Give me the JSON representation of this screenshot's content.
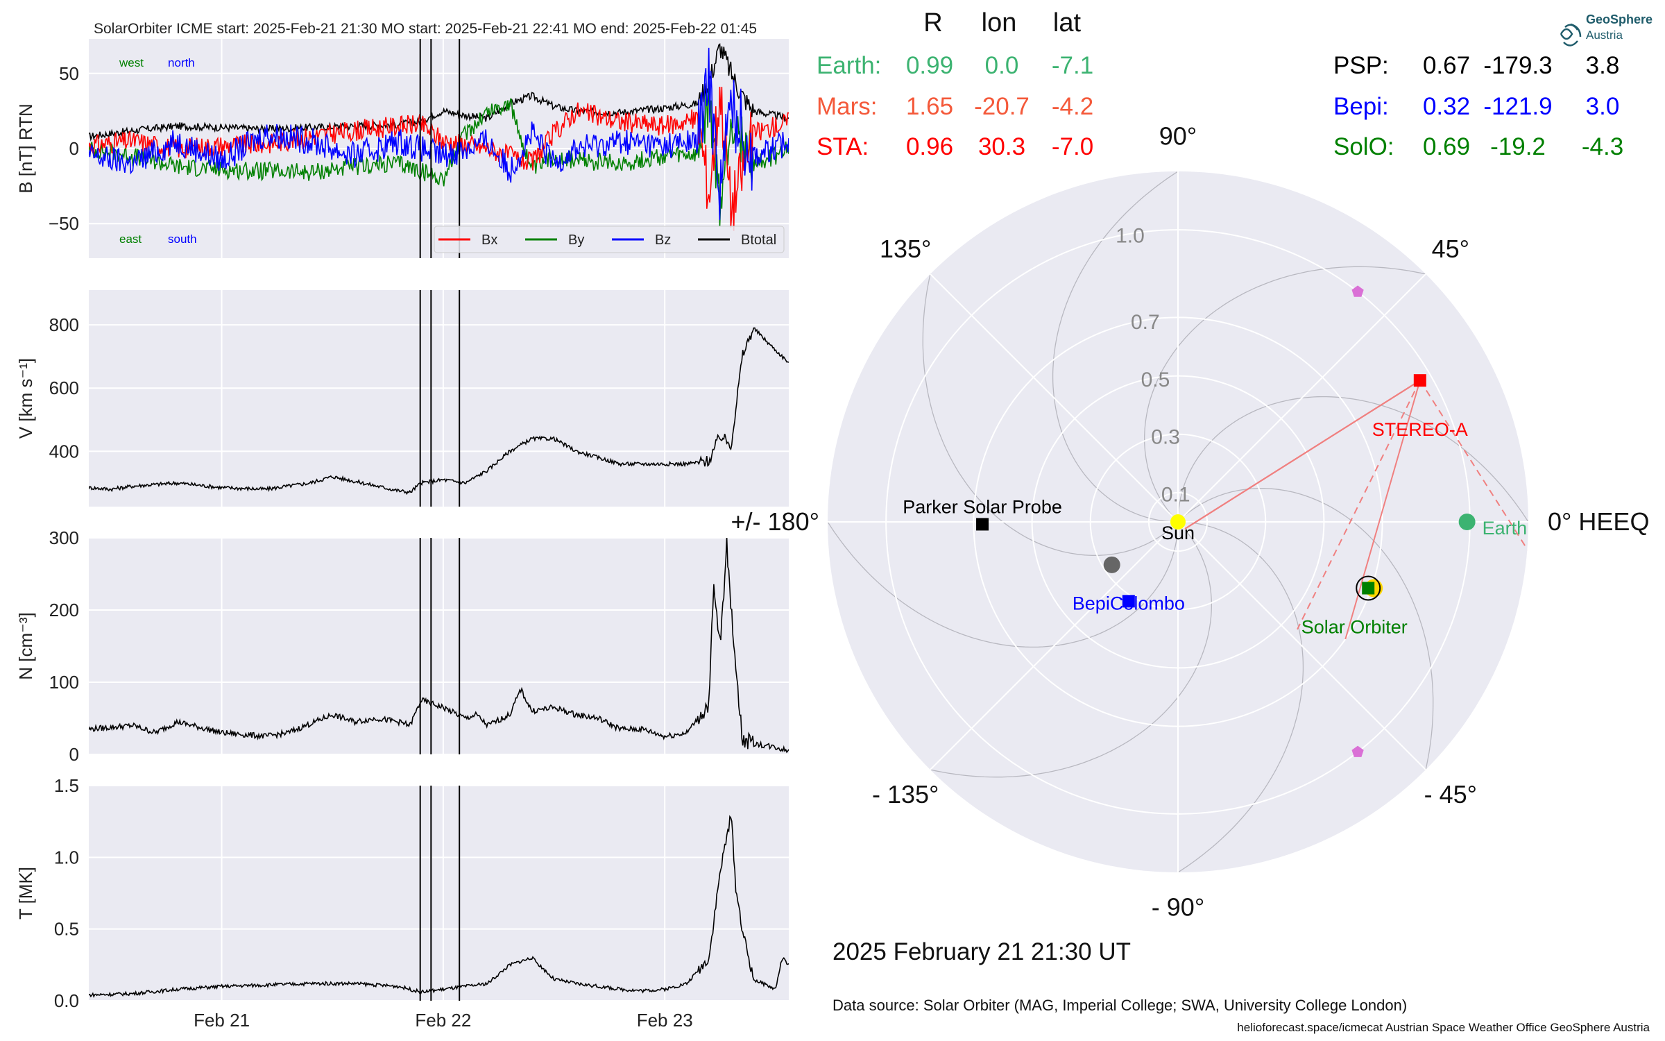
{
  "header": {
    "text": "SolarOrbiter    ICME start: 2025-Feb-21 21:30   MO start: 2025-Feb-21 22:41   MO end: 2025-Feb-22 01:45"
  },
  "chart_data": [
    {
      "type": "line",
      "panel": "B",
      "ylabel": "B [nT] RTN",
      "ylim": [
        -73,
        73
      ],
      "yticks": [
        {
          "v": 50,
          "t": "50"
        },
        {
          "v": 0,
          "t": "0"
        },
        {
          "v": -50,
          "t": "−50"
        }
      ],
      "xlim": [
        20.4,
        23.56
      ],
      "legend": [
        {
          "name": "Bx",
          "color": "#ff0000"
        },
        {
          "name": "By",
          "color": "#008000"
        },
        {
          "name": "Bz",
          "color": "#0000ff"
        },
        {
          "name": "Btotal",
          "color": "#000000"
        }
      ],
      "legend_placement": "lower right",
      "annotations": [
        {
          "text": "west",
          "color": "#008000"
        },
        {
          "text": "north",
          "color": "#0000ff"
        },
        {
          "text": "east",
          "color": "#008000"
        },
        {
          "text": "south",
          "color": "#0000ff"
        }
      ],
      "series": [
        {
          "name": "Btotal",
          "color": "#000000",
          "x": [
            20.4,
            20.6,
            20.8,
            21.0,
            21.2,
            21.4,
            21.6,
            21.8,
            21.9,
            21.95,
            22.0,
            22.1,
            22.2,
            22.3,
            22.4,
            22.5,
            22.6,
            22.8,
            23.0,
            23.15,
            23.2,
            23.25,
            23.3,
            23.35,
            23.4,
            23.5,
            23.56
          ],
          "y": [
            8,
            12,
            15,
            14,
            13,
            14,
            15,
            16,
            18,
            22,
            25,
            22,
            20,
            30,
            35,
            28,
            25,
            24,
            27,
            30,
            45,
            68,
            50,
            35,
            25,
            22,
            20
          ]
        },
        {
          "name": "Bx",
          "color": "#ff0000",
          "x": [
            20.4,
            20.6,
            20.8,
            21.0,
            21.2,
            21.4,
            21.6,
            21.8,
            21.9,
            22.0,
            22.1,
            22.2,
            22.3,
            22.4,
            22.5,
            22.6,
            22.8,
            23.0,
            23.15,
            23.2,
            23.25,
            23.3,
            23.4,
            23.5,
            23.56
          ],
          "y": [
            2,
            5,
            0,
            2,
            3,
            8,
            12,
            15,
            16,
            5,
            3,
            0,
            -5,
            -10,
            10,
            25,
            18,
            15,
            20,
            -30,
            40,
            -40,
            10,
            15,
            18
          ]
        },
        {
          "name": "By",
          "color": "#008000",
          "x": [
            20.4,
            20.6,
            20.8,
            21.0,
            21.2,
            21.4,
            21.6,
            21.8,
            21.9,
            22.0,
            22.1,
            22.2,
            22.3,
            22.4,
            22.5,
            22.6,
            22.8,
            23.0,
            23.15,
            23.2,
            23.25,
            23.3,
            23.4,
            23.5,
            23.56
          ],
          "y": [
            0,
            -5,
            -12,
            -14,
            -15,
            -16,
            -12,
            -10,
            -15,
            -20,
            10,
            25,
            30,
            -15,
            -5,
            -8,
            -10,
            -5,
            -5,
            30,
            -40,
            20,
            -10,
            -5,
            0
          ]
        },
        {
          "name": "Bz",
          "color": "#0000ff",
          "x": [
            20.4,
            20.6,
            20.8,
            21.0,
            21.2,
            21.4,
            21.6,
            21.8,
            21.9,
            22.0,
            22.1,
            22.2,
            22.3,
            22.4,
            22.5,
            22.6,
            22.8,
            23.0,
            23.15,
            23.2,
            23.25,
            23.3,
            23.4,
            23.5,
            23.56
          ],
          "y": [
            -5,
            -10,
            5,
            -8,
            10,
            5,
            -5,
            5,
            0,
            -5,
            0,
            5,
            -15,
            10,
            -10,
            0,
            5,
            2,
            5,
            45,
            -25,
            30,
            -5,
            0,
            5
          ]
        }
      ]
    },
    {
      "type": "line",
      "panel": "V",
      "ylabel": "V [km s⁻¹]",
      "ylim": [
        225,
        910
      ],
      "yticks": [
        {
          "v": 800,
          "t": "800"
        },
        {
          "v": 600,
          "t": "600"
        },
        {
          "v": 400,
          "t": "400"
        }
      ],
      "xlim": [
        20.4,
        23.56
      ],
      "series": [
        {
          "name": "V",
          "color": "#000000",
          "x": [
            20.4,
            20.5,
            20.6,
            20.8,
            21.0,
            21.2,
            21.4,
            21.5,
            21.6,
            21.7,
            21.8,
            21.85,
            21.9,
            22.0,
            22.1,
            22.2,
            22.3,
            22.35,
            22.4,
            22.5,
            22.6,
            22.7,
            22.8,
            22.9,
            23.0,
            23.1,
            23.2,
            23.25,
            23.3,
            23.35,
            23.4,
            23.5,
            23.56
          ],
          "y": [
            285,
            280,
            290,
            300,
            285,
            280,
            300,
            320,
            305,
            290,
            275,
            270,
            300,
            310,
            300,
            340,
            400,
            420,
            440,
            440,
            400,
            380,
            360,
            360,
            360,
            360,
            370,
            450,
            420,
            700,
            790,
            720,
            680
          ]
        }
      ]
    },
    {
      "type": "line",
      "panel": "N",
      "ylabel": "N [cm⁻³]",
      "ylim": [
        0,
        300
      ],
      "yticks": [
        {
          "v": 300,
          "t": "300"
        },
        {
          "v": 200,
          "t": "200"
        },
        {
          "v": 100,
          "t": "100"
        },
        {
          "v": 0,
          "t": "0"
        }
      ],
      "xlim": [
        20.4,
        23.56
      ],
      "series": [
        {
          "name": "N",
          "color": "#000000",
          "x": [
            20.4,
            20.6,
            20.7,
            20.8,
            21.0,
            21.2,
            21.3,
            21.5,
            21.6,
            21.7,
            21.8,
            21.85,
            21.9,
            22.0,
            22.1,
            22.15,
            22.2,
            22.3,
            22.35,
            22.4,
            22.5,
            22.6,
            22.7,
            22.8,
            22.9,
            23.0,
            23.1,
            23.15,
            23.2,
            23.22,
            23.25,
            23.28,
            23.3,
            23.35,
            23.4,
            23.5,
            23.56
          ],
          "y": [
            35,
            40,
            30,
            45,
            30,
            25,
            30,
            55,
            45,
            50,
            45,
            40,
            75,
            65,
            50,
            55,
            40,
            55,
            90,
            60,
            65,
            55,
            50,
            35,
            35,
            25,
            30,
            50,
            70,
            230,
            150,
            290,
            200,
            20,
            15,
            10,
            5
          ]
        }
      ]
    },
    {
      "type": "line",
      "panel": "T",
      "ylabel": "T [MK]",
      "ylim": [
        0,
        1.5
      ],
      "yticks": [
        {
          "v": 1.5,
          "t": "1.5"
        },
        {
          "v": 1.0,
          "t": "1.0"
        },
        {
          "v": 0.5,
          "t": "0.5"
        },
        {
          "v": 0.0,
          "t": "0.0"
        }
      ],
      "xlim": [
        20.4,
        23.56
      ],
      "xticks": [
        {
          "v": 21.0,
          "t": "Feb 21"
        },
        {
          "v": 22.0,
          "t": "Feb 22"
        },
        {
          "v": 23.0,
          "t": "Feb 23"
        }
      ],
      "series": [
        {
          "name": "T",
          "color": "#000000",
          "x": [
            20.4,
            20.6,
            20.8,
            21.0,
            21.2,
            21.4,
            21.6,
            21.8,
            21.9,
            22.0,
            22.1,
            22.2,
            22.3,
            22.4,
            22.5,
            22.6,
            22.7,
            22.8,
            22.9,
            23.0,
            23.1,
            23.2,
            23.25,
            23.3,
            23.32,
            23.35,
            23.4,
            23.5,
            23.53,
            23.56
          ],
          "y": [
            0.04,
            0.05,
            0.08,
            0.1,
            0.11,
            0.12,
            0.12,
            0.1,
            0.06,
            0.08,
            0.1,
            0.12,
            0.25,
            0.3,
            0.15,
            0.12,
            0.1,
            0.08,
            0.07,
            0.08,
            0.12,
            0.3,
            0.9,
            1.3,
            0.8,
            0.5,
            0.15,
            0.08,
            0.3,
            0.25
          ]
        }
      ]
    }
  ],
  "event_markers": [
    21.896,
    21.945,
    22.073
  ],
  "table": {
    "headers": [
      "R",
      "lon",
      "lat"
    ],
    "left": [
      {
        "name": "Earth:",
        "R": "0.99",
        "lon": "0.0",
        "lat": "-7.1",
        "color": "#3cb371"
      },
      {
        "name": "Mars:",
        "R": "1.65",
        "lon": "-20.7",
        "lat": "-4.2",
        "color": "#f4593a"
      },
      {
        "name": "STA:",
        "R": "0.96",
        "lon": "30.3",
        "lat": "-7.0",
        "color": "#ff0000"
      }
    ],
    "right": [
      {
        "name": "PSP:",
        "R": "0.67",
        "lon": "-179.3",
        "lat": "3.8",
        "color": "#000000"
      },
      {
        "name": "Bepi:",
        "R": "0.32",
        "lon": "-121.9",
        "lat": "3.0",
        "color": "#0000ff"
      },
      {
        "name": "SolO:",
        "R": "0.69",
        "lon": "-19.2",
        "lat": "-4.3",
        "color": "#008000"
      }
    ]
  },
  "polar": {
    "rmax": 1.2,
    "radial_labels": [
      "0.1",
      "0.3",
      "0.5",
      "0.7",
      "1.0"
    ],
    "radial_values": [
      0.1,
      0.3,
      0.5,
      0.7,
      1.0
    ],
    "angle_labels": [
      {
        "deg": 0,
        "t": "0° HEEQ"
      },
      {
        "deg": 45,
        "t": "45°"
      },
      {
        "deg": 90,
        "t": "90°"
      },
      {
        "deg": 135,
        "t": "135°"
      },
      {
        "deg": 180,
        "t": "+/- 180°"
      },
      {
        "deg": -135,
        "t": "- 135°"
      },
      {
        "deg": -90,
        "t": "- 90°"
      },
      {
        "deg": -45,
        "t": "- 45°"
      }
    ],
    "bodies": [
      {
        "name": "Sun",
        "r": 0.0,
        "lon": 0.0,
        "marker": "circle",
        "color": "#ffff00",
        "label_color": "#000000"
      },
      {
        "name": "Earth",
        "r": 0.99,
        "lon": 0.0,
        "marker": "circle",
        "color": "#3cb371",
        "label_color": "#3cb371"
      },
      {
        "name": "STEREO-A",
        "r": 0.96,
        "lon": 30.3,
        "marker": "square",
        "color": "#ff0000",
        "label_color": "#ff0000"
      },
      {
        "name": "Parker Solar Probe",
        "r": 0.67,
        "lon": -179.3,
        "marker": "square",
        "color": "#000000",
        "label_color": "#000000"
      },
      {
        "name": "BepiColombo",
        "r": 0.32,
        "lon": -121.9,
        "marker": "square",
        "color": "#0000ff",
        "label_color": "#0000ff"
      },
      {
        "name": "Solar Orbiter",
        "r": 0.69,
        "lon": -19.2,
        "marker": "square",
        "color": "#008000",
        "label_color": "#008000"
      }
    ],
    "extra_markers": [
      {
        "kind": "mars-pentagon",
        "r": 1.0,
        "lon": 52,
        "color": "#da70d6"
      },
      {
        "kind": "pentagon",
        "r": 1.0,
        "lon": -52,
        "color": "#da70d6"
      },
      {
        "kind": "venus-circle",
        "r": 0.27,
        "lon": -147,
        "color": "#666666"
      }
    ],
    "sta_rays": [
      {
        "toward_r": 0.7,
        "toward_lon": -35,
        "style": "solid"
      },
      {
        "toward_r": 0.55,
        "toward_lon": -42,
        "style": "dashed"
      },
      {
        "toward_r": 1.3,
        "toward_lon": -10,
        "style": "dashed-outer"
      }
    ],
    "ray_color": "#f08080"
  },
  "time_stamp": "2025 February 21  21:30 UT",
  "data_source": "Data source: Solar Orbiter (MAG, Imperial College; SWA, University College London)",
  "footer": "helioforecast.space/icmecat   Austrian Space Weather Office   GeoSphere Austria",
  "logo": {
    "line1": "GeoSphere",
    "line2": "Austria",
    "color": "#1f5c6b"
  }
}
